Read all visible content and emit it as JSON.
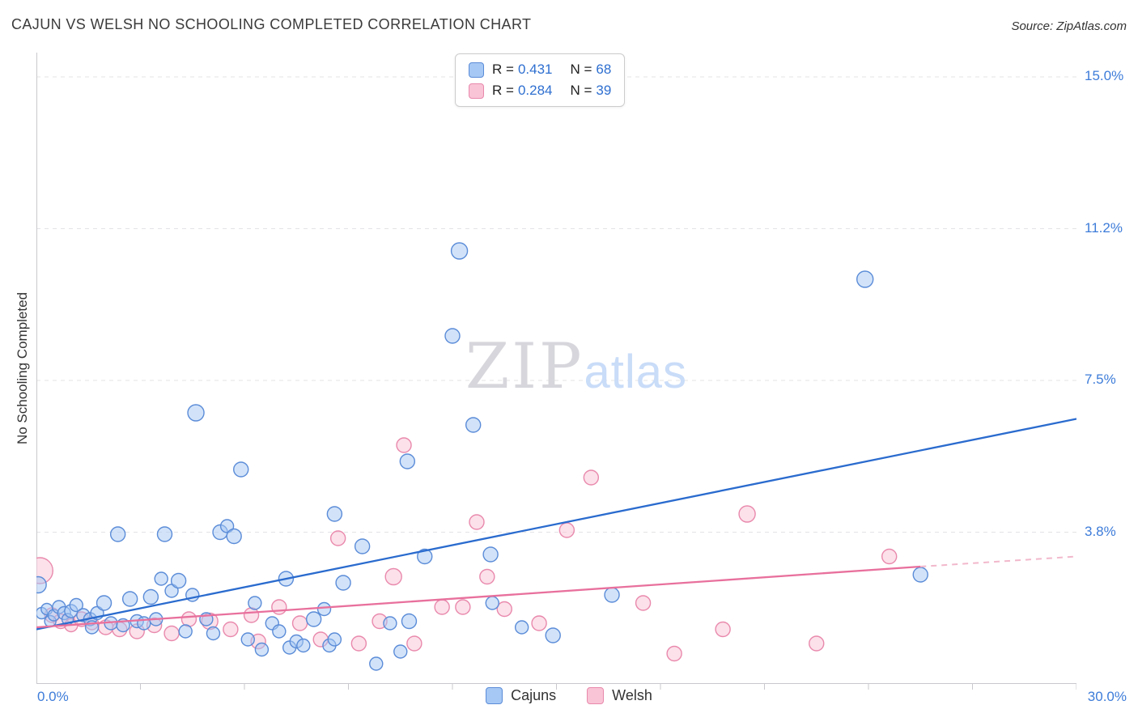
{
  "header": {
    "source": "Source: ZipAtlas.com"
  },
  "watermark": {
    "part1": "ZIP",
    "part2": "atlas"
  },
  "legend_box": {
    "r_label": "R =",
    "n_label": "N ="
  },
  "colors": {
    "accent_blue": "#3d7cd9",
    "grid": "#e3e3e6",
    "axis": "#c9c9ce",
    "cajun_fill": "#a6c8f4",
    "cajun_stroke": "#5b8cd8",
    "cajun_line": "#2a6bce",
    "welsh_fill": "#f9c4d6",
    "welsh_stroke": "#e989ac",
    "welsh_line": "#e8709c",
    "welsh_line_dashed": "#f2b8cc"
  },
  "chart_data": {
    "type": "scatter",
    "title": "CAJUN VS WELSH NO SCHOOLING COMPLETED CORRELATION CHART",
    "xlabel": "",
    "ylabel": "No Schooling Completed",
    "xlim": [
      0,
      30
    ],
    "ylim": [
      0,
      15.6
    ],
    "grid": "horizontal-dashed",
    "legend_position": "bottom-center",
    "x_edge_labels": {
      "min": "0.0%",
      "max": "30.0%"
    },
    "y_gridlines": [
      {
        "value": 3.75,
        "label": "3.8%"
      },
      {
        "value": 7.5,
        "label": "7.5%"
      },
      {
        "value": 11.25,
        "label": "11.2%"
      },
      {
        "value": 15.0,
        "label": "15.0%"
      }
    ],
    "x_minor_ticks": [
      3,
      6,
      9,
      12,
      15,
      18,
      21,
      24,
      27,
      30
    ],
    "series": [
      {
        "name": "Cajuns",
        "R": "0.431",
        "N": "68",
        "fill": "#a6c8f4",
        "stroke": "#5b8cd8",
        "trend": {
          "x": [
            0,
            30
          ],
          "y": [
            1.35,
            6.55
          ],
          "color": "#2a6bce"
        },
        "points": [
          [
            0.05,
            2.45,
            10
          ],
          [
            0.15,
            1.75,
            7
          ],
          [
            0.3,
            1.85,
            7
          ],
          [
            0.4,
            1.55,
            7
          ],
          [
            0.5,
            1.7,
            7
          ],
          [
            0.65,
            1.9,
            8
          ],
          [
            0.8,
            1.75,
            8
          ],
          [
            0.9,
            1.6,
            7
          ],
          [
            1.0,
            1.8,
            8
          ],
          [
            1.15,
            1.95,
            8
          ],
          [
            1.35,
            1.7,
            8
          ],
          [
            1.55,
            1.6,
            8
          ],
          [
            1.6,
            1.4,
            8
          ],
          [
            1.75,
            1.75,
            8
          ],
          [
            1.95,
            2.0,
            9
          ],
          [
            2.15,
            1.5,
            8
          ],
          [
            2.35,
            3.7,
            9
          ],
          [
            2.5,
            1.45,
            8
          ],
          [
            2.7,
            2.1,
            9
          ],
          [
            2.9,
            1.55,
            8
          ],
          [
            3.1,
            1.5,
            8
          ],
          [
            3.3,
            2.15,
            9
          ],
          [
            3.45,
            1.6,
            8
          ],
          [
            3.6,
            2.6,
            8
          ],
          [
            3.7,
            3.7,
            9
          ],
          [
            3.9,
            2.3,
            8
          ],
          [
            4.1,
            2.55,
            9
          ],
          [
            4.3,
            1.3,
            8
          ],
          [
            4.5,
            2.2,
            8
          ],
          [
            4.6,
            6.7,
            10
          ],
          [
            4.9,
            1.6,
            8
          ],
          [
            5.1,
            1.25,
            8
          ],
          [
            5.3,
            3.75,
            9
          ],
          [
            5.5,
            3.9,
            8
          ],
          [
            5.7,
            3.65,
            9
          ],
          [
            5.9,
            5.3,
            9
          ],
          [
            6.1,
            1.1,
            8
          ],
          [
            6.3,
            2.0,
            8
          ],
          [
            6.5,
            0.85,
            8
          ],
          [
            6.8,
            1.5,
            8
          ],
          [
            7.0,
            1.3,
            8
          ],
          [
            7.2,
            2.6,
            9
          ],
          [
            7.3,
            0.9,
            8
          ],
          [
            7.5,
            1.05,
            8
          ],
          [
            7.7,
            0.95,
            8
          ],
          [
            8.0,
            1.6,
            9
          ],
          [
            8.3,
            1.85,
            8
          ],
          [
            8.45,
            0.95,
            8
          ],
          [
            8.6,
            1.1,
            8
          ],
          [
            8.6,
            4.2,
            9
          ],
          [
            8.85,
            2.5,
            9
          ],
          [
            9.4,
            3.4,
            9
          ],
          [
            9.8,
            0.5,
            8
          ],
          [
            10.2,
            1.5,
            8
          ],
          [
            10.5,
            0.8,
            8
          ],
          [
            10.7,
            5.5,
            9
          ],
          [
            10.75,
            1.55,
            9
          ],
          [
            11.2,
            3.15,
            9
          ],
          [
            12.0,
            8.6,
            9
          ],
          [
            12.2,
            10.7,
            10
          ],
          [
            12.6,
            6.4,
            9
          ],
          [
            13.1,
            3.2,
            9
          ],
          [
            13.15,
            2.0,
            8
          ],
          [
            14.0,
            1.4,
            8
          ],
          [
            14.9,
            1.2,
            9
          ],
          [
            16.6,
            2.2,
            9
          ],
          [
            23.9,
            10.0,
            10
          ],
          [
            25.5,
            2.7,
            9
          ]
        ]
      },
      {
        "name": "Welsh",
        "R": "0.284",
        "N": "39",
        "fill": "#f9c4d6",
        "stroke": "#e989ac",
        "trend": {
          "x": [
            0,
            25.5
          ],
          "y": [
            1.4,
            2.9
          ],
          "color": "#e8709c",
          "dashed_ext": {
            "x": [
              25.5,
              30
            ],
            "y": [
              2.9,
              3.15
            ]
          }
        },
        "points": [
          [
            0.1,
            2.8,
            16
          ],
          [
            0.45,
            1.7,
            9
          ],
          [
            0.7,
            1.55,
            9
          ],
          [
            1.0,
            1.45,
            8
          ],
          [
            1.3,
            1.6,
            9
          ],
          [
            1.6,
            1.5,
            8
          ],
          [
            2.0,
            1.4,
            9
          ],
          [
            2.4,
            1.35,
            9
          ],
          [
            2.9,
            1.3,
            9
          ],
          [
            3.4,
            1.45,
            9
          ],
          [
            3.9,
            1.25,
            9
          ],
          [
            4.4,
            1.6,
            9
          ],
          [
            5.0,
            1.55,
            10
          ],
          [
            5.6,
            1.35,
            9
          ],
          [
            6.2,
            1.7,
            9
          ],
          [
            6.4,
            1.05,
            9
          ],
          [
            7.0,
            1.9,
            9
          ],
          [
            7.6,
            1.5,
            9
          ],
          [
            8.2,
            1.1,
            9
          ],
          [
            8.7,
            3.6,
            9
          ],
          [
            9.3,
            1.0,
            9
          ],
          [
            9.9,
            1.55,
            9
          ],
          [
            10.3,
            2.65,
            10
          ],
          [
            10.6,
            5.9,
            9
          ],
          [
            10.9,
            1.0,
            9
          ],
          [
            11.7,
            1.9,
            9
          ],
          [
            12.3,
            1.9,
            9
          ],
          [
            12.7,
            4.0,
            9
          ],
          [
            13.0,
            2.65,
            9
          ],
          [
            13.5,
            1.85,
            9
          ],
          [
            14.5,
            1.5,
            9
          ],
          [
            15.3,
            3.8,
            9
          ],
          [
            16.0,
            5.1,
            9
          ],
          [
            17.5,
            2.0,
            9
          ],
          [
            18.4,
            0.75,
            9
          ],
          [
            19.8,
            1.35,
            9
          ],
          [
            20.5,
            4.2,
            10
          ],
          [
            22.5,
            1.0,
            9
          ],
          [
            24.6,
            3.15,
            9
          ]
        ]
      }
    ]
  }
}
